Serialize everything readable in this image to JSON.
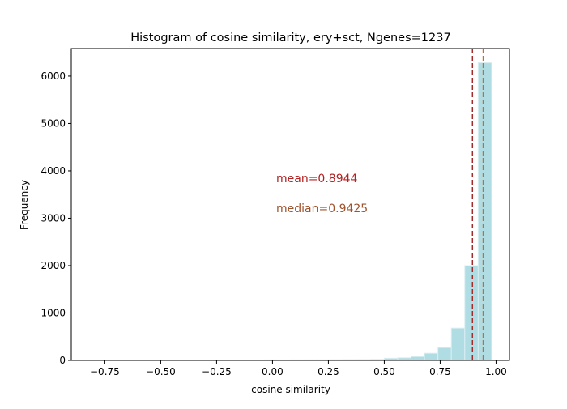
{
  "chart_data": {
    "type": "bar",
    "title": "Histogram of cosine similarity, ery+sct, Ngenes=1237",
    "xlabel": "cosine similarity",
    "ylabel": "Frequency",
    "xlim": [
      -0.9,
      1.06
    ],
    "ylim": [
      0,
      6580
    ],
    "xticks": [
      -0.75,
      -0.5,
      -0.25,
      0.0,
      0.25,
      0.5,
      0.75,
      1.0
    ],
    "xtick_labels": [
      "−0.75",
      "−0.50",
      "−0.25",
      "0.00",
      "0.25",
      "0.50",
      "0.75",
      "1.00"
    ],
    "yticks": [
      0,
      1000,
      2000,
      3000,
      4000,
      5000,
      6000
    ],
    "ytick_labels": [
      "0",
      "1000",
      "2000",
      "3000",
      "4000",
      "5000",
      "6000"
    ],
    "grid": false,
    "bin_width": 0.06,
    "bins": [
      {
        "start": -0.7,
        "count": 6
      },
      {
        "start": -0.64,
        "count": 8
      },
      {
        "start": -0.58,
        "count": 4
      },
      {
        "start": -0.52,
        "count": 3
      },
      {
        "start": -0.46,
        "count": 3
      },
      {
        "start": -0.4,
        "count": 5
      },
      {
        "start": -0.34,
        "count": 7
      },
      {
        "start": -0.28,
        "count": 6
      },
      {
        "start": -0.22,
        "count": 5
      },
      {
        "start": -0.16,
        "count": 8
      },
      {
        "start": -0.1,
        "count": 7
      },
      {
        "start": -0.04,
        "count": 10
      },
      {
        "start": 0.02,
        "count": 9
      },
      {
        "start": 0.08,
        "count": 11
      },
      {
        "start": 0.14,
        "count": 12
      },
      {
        "start": 0.2,
        "count": 12
      },
      {
        "start": 0.26,
        "count": 14
      },
      {
        "start": 0.32,
        "count": 16
      },
      {
        "start": 0.38,
        "count": 18
      },
      {
        "start": 0.44,
        "count": 22
      },
      {
        "start": 0.5,
        "count": 45
      },
      {
        "start": 0.56,
        "count": 55
      },
      {
        "start": 0.62,
        "count": 80
      },
      {
        "start": 0.68,
        "count": 150
      },
      {
        "start": 0.74,
        "count": 270
      },
      {
        "start": 0.8,
        "count": 680
      },
      {
        "start": 0.86,
        "count": 2000
      },
      {
        "start": 0.92,
        "count": 6280
      }
    ],
    "mean": 0.8944,
    "median": 0.9425,
    "annotations": [
      {
        "label": "mean=0.8944",
        "color": "#b22222"
      },
      {
        "label": "median=0.9425",
        "color": "#a0522d"
      }
    ],
    "bar_color": "#b0dde4",
    "bar_edge_color": "#d9eef2",
    "mean_line_color": "#a52a2a",
    "median_line_color": "#d2691e"
  }
}
